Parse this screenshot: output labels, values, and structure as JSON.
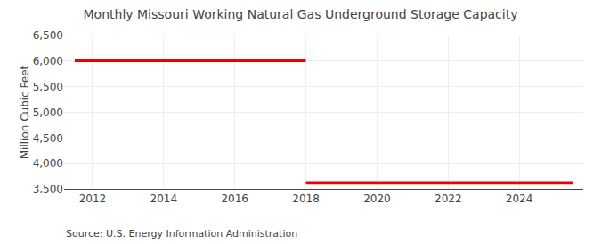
{
  "chart_data": {
    "type": "line",
    "title": "Monthly Missouri Working Natural Gas Underground Storage Capacity",
    "ylabel": "Million Cubic Feet",
    "annotations": [
      "Source: U.S. Energy Information Administration"
    ],
    "x": [
      2011.5,
      2018.0,
      2018.0,
      2018.0,
      2025.5
    ],
    "values": [
      6006,
      6006,
      null,
      3625,
      3625
    ],
    "color": "#ee0000",
    "xlim": [
      2011.2,
      2025.8
    ],
    "ylim": [
      3500,
      6500
    ],
    "xticks": [
      2012,
      2014,
      2016,
      2018,
      2020,
      2022,
      2024
    ],
    "yticks": [
      {
        "value": 3500,
        "label": "3,500"
      },
      {
        "value": 4000,
        "label": "4,000"
      },
      {
        "value": 4500,
        "label": "4,500"
      },
      {
        "value": 5000,
        "label": "5,000"
      },
      {
        "value": 5500,
        "label": "5,500"
      },
      {
        "value": 6000,
        "label": "6,000"
      },
      {
        "value": 6500,
        "label": "6,500"
      }
    ],
    "grid": true
  }
}
